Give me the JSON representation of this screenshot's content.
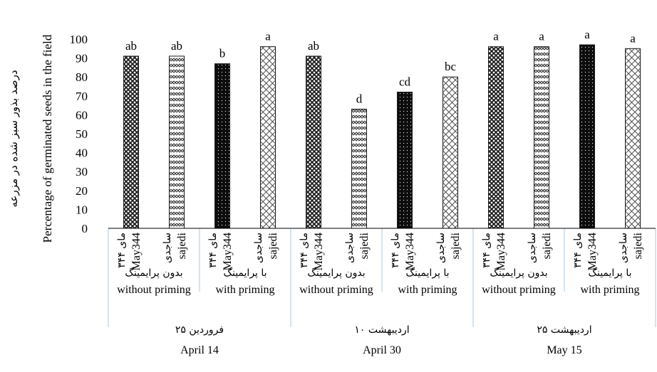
{
  "chart_data": {
    "type": "bar",
    "ylabel_en": "Percentage of germinated seeds in the field",
    "ylabel_fa": "درصد بذور سبز شده در مزرعه",
    "ylim": [
      0,
      100
    ],
    "yticks": [
      0,
      10,
      20,
      30,
      40,
      50,
      60,
      70,
      80,
      90,
      100
    ],
    "grid": false,
    "bars": [
      {
        "cultivar_fa": "مای ۳۴۴",
        "cultivar_en": "May344",
        "value": 91,
        "letter": "ab",
        "pattern": "crosshatch"
      },
      {
        "cultivar_fa": "ساجدی",
        "cultivar_en": "sajedi",
        "value": 91,
        "letter": "ab",
        "pattern": "zigzag"
      },
      {
        "cultivar_fa": "مای ۳۴۴",
        "cultivar_en": "May344",
        "value": 87,
        "letter": "b",
        "pattern": "dots"
      },
      {
        "cultivar_fa": "ساجدی",
        "cultivar_en": "sajedi",
        "value": 96,
        "letter": "a",
        "pattern": "diamond"
      },
      {
        "cultivar_fa": "مای ۳۴۴",
        "cultivar_en": "May344",
        "value": 91,
        "letter": "ab",
        "pattern": "crosshatch"
      },
      {
        "cultivar_fa": "ساجدی",
        "cultivar_en": "sajedi",
        "value": 63,
        "letter": "d",
        "pattern": "zigzag"
      },
      {
        "cultivar_fa": "مای ۳۴۴",
        "cultivar_en": "May344",
        "value": 72,
        "letter": "cd",
        "pattern": "dots"
      },
      {
        "cultivar_fa": "ساجدی",
        "cultivar_en": "sajedi",
        "value": 80,
        "letter": "bc",
        "pattern": "diamond"
      },
      {
        "cultivar_fa": "مای ۳۴۴",
        "cultivar_en": "May344",
        "value": 96,
        "letter": "a",
        "pattern": "crosshatch"
      },
      {
        "cultivar_fa": "ساجدی",
        "cultivar_en": "sajedi",
        "value": 96,
        "letter": "a",
        "pattern": "zigzag"
      },
      {
        "cultivar_fa": "مای ۳۴۴",
        "cultivar_en": "May344",
        "value": 97,
        "letter": "a",
        "pattern": "dots"
      },
      {
        "cultivar_fa": "ساجدی",
        "cultivar_en": "sajedi",
        "value": 95,
        "letter": "a",
        "pattern": "diamond"
      }
    ],
    "priming_groups": [
      {
        "fa": "بدون پرایمینگ",
        "en": "without priming"
      },
      {
        "fa": "با پرایمینگ",
        "en": "with priming"
      },
      {
        "fa": "بدون پرایمینگ",
        "en": "without priming"
      },
      {
        "fa": "با پرایمینگ",
        "en": "with priming"
      },
      {
        "fa": "بدون پرایمینگ",
        "en": "without priming"
      },
      {
        "fa": "با پرایمینگ",
        "en": "with priming"
      }
    ],
    "date_groups": [
      {
        "fa": "۲۵ فروردین",
        "en": "April 14"
      },
      {
        "fa": "۱۰ اردیبهشت",
        "en": "April 30"
      },
      {
        "fa": "۲۵ اردیبهشت",
        "en": "May 15"
      }
    ],
    "colors": {
      "bar_fill": "#ffffff",
      "bar_ink": "#1a1a1a",
      "dots_bg": "#0d0d0d",
      "axis": "#000000",
      "separator": "#aac8e0"
    }
  }
}
